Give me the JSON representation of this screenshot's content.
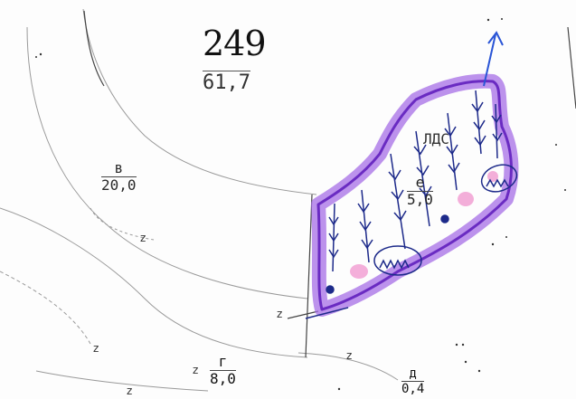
{
  "parcel_main": {
    "number": "249",
    "area": "61,7"
  },
  "subparcels": [
    {
      "key": "v",
      "letter": "в",
      "value": "20,0"
    },
    {
      "key": "g",
      "letter": "г",
      "value": "8,0"
    },
    {
      "key": "e",
      "letter": "е",
      "value": "5,0"
    },
    {
      "key": "d",
      "letter": "д",
      "value": "0,4"
    }
  ],
  "marked_area_label": "ЛДС",
  "edge_marks": [
    "z",
    "z",
    "z",
    "z",
    "z",
    "z"
  ],
  "colors": {
    "outline": "#7a32d6",
    "outline_fill": "#c9a4f0",
    "pink": "#f3a6d6",
    "ink": "#1d2a8a",
    "boundary": "#555555",
    "contour": "#8a8a8a"
  },
  "icons": [
    "tree-symbol",
    "shrub-clump",
    "north-arrow",
    "boundary-dot"
  ]
}
